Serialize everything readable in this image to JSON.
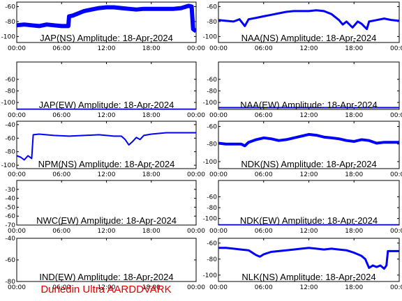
{
  "footer": "Dunedin Ultra AARDDVARK",
  "colors": {
    "trace": "#0000ff",
    "text": "#000000",
    "footer": "#e00000"
  },
  "x_ticks": [
    "00:00",
    "06:00",
    "12:00",
    "18:00",
    "00:00"
  ],
  "chart_data": [
    {
      "type": "line",
      "title": "JAP(NS) Amplitude: 18-Apr-2024",
      "xlim": [
        0,
        24
      ],
      "ylim": [
        -108,
        -54
      ],
      "yticks": [
        "-60",
        "-80",
        "-100"
      ],
      "series": [
        {
          "x": [
            0,
            1,
            2,
            3,
            4,
            5,
            6,
            6.9,
            7,
            7.5,
            8,
            9,
            10,
            11,
            12,
            13,
            14,
            15,
            16,
            17,
            18,
            19,
            20,
            21,
            22,
            23,
            23.4,
            23.6,
            24
          ],
          "y": [
            -85,
            -84,
            -85,
            -86,
            -84,
            -85,
            -86,
            -86,
            -73,
            -72,
            -70,
            -66,
            -64,
            -62,
            -61,
            -61,
            -62,
            -63,
            -64,
            -63,
            -63,
            -63,
            -63,
            -63,
            -62,
            -59,
            -60,
            -90,
            -93
          ],
          "band": 6
        }
      ]
    },
    {
      "type": "line",
      "title": "NAA(NS) Amplitude: 18-Apr-2024",
      "xlim": [
        0,
        24
      ],
      "ylim": [
        -108,
        -54
      ],
      "yticks": [
        "-60",
        "-80",
        "-100"
      ],
      "series": [
        {
          "x": [
            0,
            1,
            2,
            2.8,
            3.5,
            4,
            5,
            6,
            7,
            8,
            9,
            10,
            11,
            12,
            13,
            14,
            15,
            16,
            16.5,
            17,
            17.8,
            18.5,
            19,
            19.7,
            20,
            21,
            22,
            23,
            24
          ],
          "y": [
            -78,
            -79,
            -80,
            -77,
            -86,
            -77,
            -75,
            -73,
            -71,
            -69,
            -67,
            -66,
            -66,
            -66,
            -65,
            -66,
            -70,
            -78,
            -84,
            -80,
            -88,
            -80,
            -83,
            -90,
            -80,
            -78,
            -76,
            -78,
            -79
          ],
          "band": 3
        }
      ]
    },
    {
      "type": "line",
      "title": "JAP(EW) Amplitude: 18-Apr-2024",
      "xlim": [
        0,
        24
      ],
      "ylim": [
        -112,
        -30
      ],
      "yticks": [
        "-60",
        "-80",
        "-100"
      ],
      "series": [
        {
          "x": [
            0,
            24
          ],
          "y": [
            -111,
            -111
          ],
          "band": 1
        }
      ]
    },
    {
      "type": "line",
      "title": "NAA(EW) Amplitude: 18-Apr-2024",
      "xlim": [
        0,
        24
      ],
      "ylim": [
        -112,
        -30
      ],
      "yticks": [
        "-60",
        "-80",
        "-100"
      ],
      "series": [
        {
          "x": [
            0,
            24
          ],
          "y": [
            -109,
            -109
          ],
          "band": 2
        }
      ]
    },
    {
      "type": "line",
      "title": "NPM(NS) Amplitude: 18-Apr-2024",
      "xlim": [
        0,
        24
      ],
      "ylim": [
        -105,
        -35
      ],
      "yticks": [
        "-40",
        "-60",
        "-80",
        "-100"
      ],
      "series": [
        {
          "x": [
            0,
            0.5,
            1,
            1.5,
            2,
            2.2,
            3,
            5,
            7,
            9,
            11,
            13,
            14,
            14.5,
            15,
            15.5,
            16,
            16.5,
            17,
            18,
            19,
            20,
            22,
            24
          ],
          "y": [
            -86,
            -88,
            -92,
            -86,
            -90,
            -55,
            -54,
            -56,
            -57,
            -56,
            -55,
            -57,
            -57,
            -62,
            -70,
            -65,
            -59,
            -62,
            -56,
            -54,
            -53,
            -52,
            -52,
            -52
          ],
          "band": 2
        }
      ]
    },
    {
      "type": "line",
      "title": "NDK(NS) Amplitude: 18-Apr-2024",
      "xlim": [
        0,
        24
      ],
      "ylim": [
        -108,
        -54
      ],
      "yticks": [
        "-60",
        "-80",
        "-100"
      ],
      "series": [
        {
          "x": [
            0,
            1,
            2,
            3,
            3.5,
            4,
            5,
            6,
            7,
            8,
            9,
            10,
            11,
            12,
            13,
            14,
            15,
            16,
            17,
            18,
            19,
            20,
            21,
            22,
            23,
            24
          ],
          "y": [
            -79,
            -80,
            -80,
            -80,
            -82,
            -78,
            -75,
            -73,
            -74,
            -76,
            -75,
            -73,
            -71,
            -69,
            -70,
            -72,
            -73,
            -74,
            -76,
            -77,
            -75,
            -76,
            -79,
            -78,
            -78,
            -78
          ],
          "band": 4
        }
      ]
    },
    {
      "type": "line",
      "title": "NWC(EW) Amplitude: 18-Apr-2024",
      "xlim": [
        0,
        24
      ],
      "ylim": [
        -70,
        -20
      ],
      "yticks": [
        "-30",
        "-40",
        "-50",
        "-60",
        "-70"
      ],
      "series": []
    },
    {
      "type": "line",
      "title": "NDK(EW) Amplitude: 18-Apr-2024",
      "xlim": [
        0,
        24
      ],
      "ylim": [
        -112,
        -30
      ],
      "yticks": [
        "-60",
        "-80",
        "-100"
      ],
      "series": [
        {
          "x": [
            0,
            24
          ],
          "y": [
            -111,
            -111
          ],
          "band": 1
        }
      ]
    },
    {
      "type": "line",
      "title": "IND(EW) Amplitude: 18-Apr-2024",
      "xlim": [
        0,
        24
      ],
      "ylim": [
        -80,
        -40
      ],
      "yticks": [
        "-40",
        "-60",
        "-80"
      ],
      "series": []
    },
    {
      "type": "line",
      "title": "NLK(NS) Amplitude: 18-Apr-2024",
      "xlim": [
        0,
        24
      ],
      "ylim": [
        -108,
        -54
      ],
      "yticks": [
        "-60",
        "-80",
        "-100"
      ],
      "series": [
        {
          "x": [
            0,
            1,
            2,
            3,
            4,
            5,
            5.5,
            6,
            7,
            8,
            9,
            10,
            11,
            12,
            13,
            14,
            15,
            16,
            17,
            18,
            19,
            19.5,
            20,
            20.5,
            21,
            21.5,
            22,
            22.3,
            22.5,
            23,
            24
          ],
          "y": [
            -66,
            -66,
            -67,
            -68,
            -69,
            -75,
            -77,
            -74,
            -71,
            -70,
            -69,
            -68,
            -67,
            -66,
            -67,
            -68,
            -67,
            -68,
            -69,
            -72,
            -76,
            -80,
            -91,
            -88,
            -90,
            -88,
            -92,
            -88,
            -70,
            -70,
            -70
          ],
          "band": 3
        }
      ]
    }
  ]
}
